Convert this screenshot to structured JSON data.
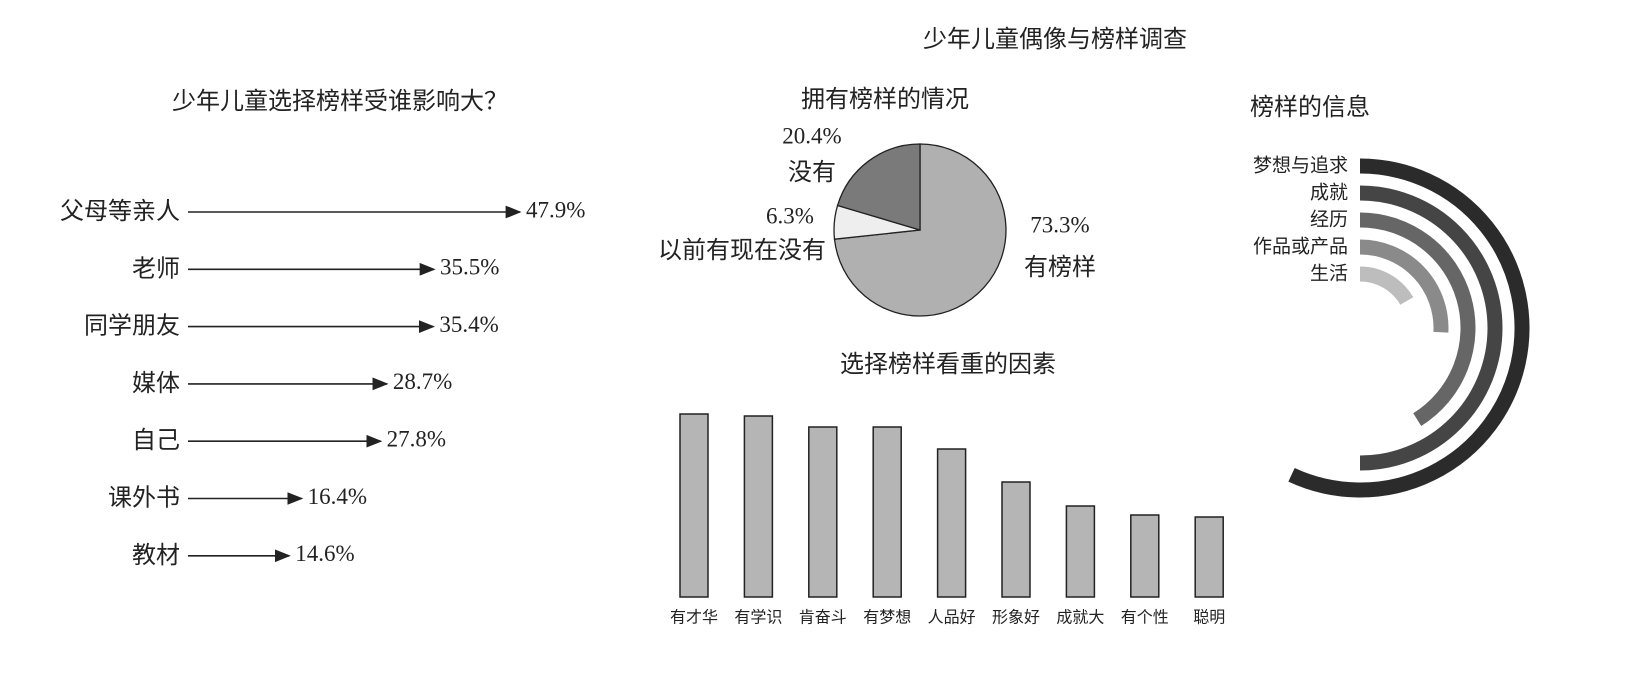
{
  "title": "少年儿童偶像与榜样调查",
  "chart_data": [
    {
      "type": "arrow",
      "title": "少年儿童选择榜样受谁影响大？",
      "categories": [
        "父母等亲人",
        "老师",
        "同学朋友",
        "媒体",
        "自己",
        "课外书",
        "教材"
      ],
      "values": [
        47.9,
        35.5,
        35.4,
        28.7,
        27.8,
        16.4,
        14.6
      ],
      "value_labels": [
        "47.9%",
        "35.5%",
        "35.4%",
        "28.7%",
        "27.8%",
        "16.4%",
        "14.6%"
      ],
      "color": "#222222"
    },
    {
      "type": "pie",
      "title": "拥有榜样的情况",
      "categories": [
        "有榜样",
        "以前有现在没有",
        "没有"
      ],
      "values": [
        73.3,
        6.3,
        20.4
      ],
      "value_labels": [
        "73.3%",
        "6.3%",
        "20.4%"
      ],
      "colors": [
        "#b0b0b0",
        "#eeeeee",
        "#7a7a7a"
      ]
    },
    {
      "type": "bar",
      "title": "选择榜样看重的因素",
      "categories": [
        "有才华",
        "有学识",
        "肯奋斗",
        "有梦想",
        "人品好",
        "形象好",
        "成就大",
        "有个性",
        "聪明"
      ],
      "values": [
        183,
        181,
        170,
        170,
        148,
        115,
        91,
        82,
        80
      ],
      "color": "#b5b5b5"
    },
    {
      "type": "radial",
      "title": "榜样的信息",
      "categories": [
        "梦想与追求",
        "成就",
        "经历",
        "作品或产品",
        "生活"
      ],
      "values": [
        205,
        180,
        148,
        93,
        60
      ],
      "colors": [
        "#2b2b2b",
        "#454545",
        "#666666",
        "#8a8a8a",
        "#bdbdbd"
      ]
    }
  ]
}
